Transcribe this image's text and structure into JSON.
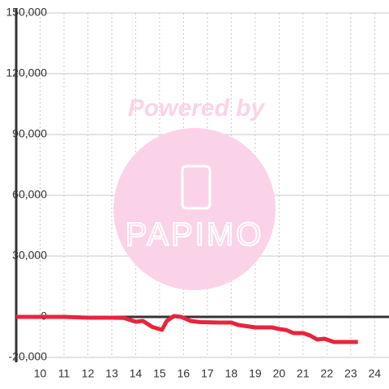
{
  "chart_data": {
    "type": "line",
    "annotations": [
      "Powered by",
      "PAPIMO"
    ],
    "x": [
      9,
      10,
      11,
      12,
      13,
      13.5,
      14,
      14.3,
      14.7,
      15.1,
      15.3,
      15.6,
      15.9,
      16.3,
      16.7,
      17.5,
      18,
      18.3,
      19,
      19.7,
      20,
      20.3,
      20.6,
      21,
      21.3,
      21.6,
      21.9,
      22.3,
      22.6,
      23.3
    ],
    "series": [
      {
        "color": "#e8243c",
        "values": [
          0,
          0,
          0,
          -400,
          -400,
          -500,
          -2400,
          -2000,
          -5000,
          -6400,
          -2000,
          400,
          0,
          -2000,
          -2600,
          -2800,
          -2800,
          -4000,
          -5200,
          -5200,
          -6000,
          -6500,
          -8000,
          -8000,
          -9200,
          -11200,
          -10800,
          -12400,
          -12400,
          -12400
        ]
      }
    ],
    "xlim": [
      9,
      24.6
    ],
    "ylim": [
      -20000,
      150000
    ],
    "xticks": [
      10,
      11,
      12,
      13,
      14,
      15,
      16,
      17,
      18,
      19,
      20,
      21,
      22,
      23,
      24
    ],
    "yticks": [
      {
        "value": -20000,
        "label": "-20,000"
      },
      0,
      {
        "value": 30000,
        "label": "30,000"
      },
      {
        "value": 60000,
        "label": "60,000"
      },
      {
        "value": 90000,
        "label": "90,000"
      },
      {
        "value": 120000,
        "label": "120,000"
      },
      {
        "value": 150000,
        "label": "150,000"
      }
    ],
    "grid": true
  }
}
